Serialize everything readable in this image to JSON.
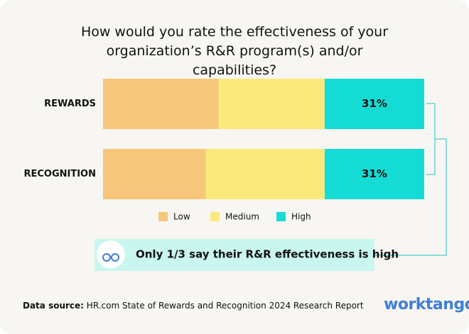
{
  "chart_data": {
    "type": "stacked_bar_horizontal",
    "title": "How would you rate the effectiveness of your organization’s R&R program(s) and/or capabilities?",
    "categories": [
      "REWARDS",
      "RECOGNITION"
    ],
    "series": [
      {
        "name": "Low",
        "color": "#f6c67a",
        "values": [
          36,
          32
        ]
      },
      {
        "name": "Medium",
        "color": "#fce97b",
        "values": [
          33,
          37
        ]
      },
      {
        "name": "High",
        "color": "#14dcd5",
        "values": [
          31,
          31
        ],
        "value_labels": [
          "31%",
          "31%"
        ]
      }
    ],
    "xlim": [
      0,
      100
    ],
    "annotation": "Only 1/3 say their R&R effectiveness is high",
    "source_label": "Data source:",
    "source": "HR.com State of Rewards and Recognition 2024 Research Report",
    "brand": "worktango"
  }
}
